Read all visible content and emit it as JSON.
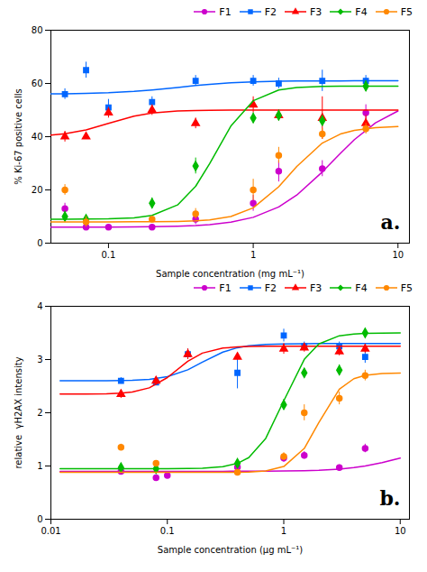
{
  "chart_data": [
    {
      "type": "scatter",
      "annotation": "a.",
      "xlabel": "Sample concentration (mg mL⁻¹)",
      "ylabel": "% Ki-67 positive cells",
      "log": "x",
      "xlim": [
        0.04,
        12
      ],
      "xticks": [
        0.1,
        1,
        10
      ],
      "ylim": [
        0,
        80
      ],
      "yticks": [
        0,
        20,
        40,
        60,
        80
      ],
      "grid": false,
      "legend": "upper right",
      "series": [
        {
          "name": "F1",
          "color": "#CC00CC",
          "marker": "circle",
          "x": [
            0.05,
            0.07,
            0.1,
            0.2,
            0.4,
            1.0,
            1.5,
            3.0,
            6.0
          ],
          "values": [
            13,
            6,
            6,
            6,
            9,
            15,
            27,
            28,
            49
          ],
          "yerr": [
            2,
            1,
            1,
            1,
            2,
            3,
            4,
            3,
            3
          ],
          "fit": {
            "x": [
              0.04,
              0.05,
              0.07,
              0.1,
              0.15,
              0.2,
              0.3,
              0.4,
              0.5,
              0.7,
              1,
              1.5,
              2,
              3,
              4,
              5,
              7,
              10
            ],
            "values": [
              6.006,
              6.01,
              6.02,
              6.04,
              6.09,
              6.159,
              6.357,
              6.632,
              6.98,
              7.885,
              9.698,
              13.603,
              18.062,
              26.753,
              33.752,
              38.886,
              45.2,
              49.653
            ]
          }
        },
        {
          "name": "F2",
          "color": "#0066FF",
          "marker": "square",
          "x": [
            0.05,
            0.07,
            0.1,
            0.2,
            0.4,
            1.0,
            1.5,
            3.0,
            6.0
          ],
          "values": [
            56,
            65,
            51,
            53,
            61,
            61,
            60,
            61,
            61
          ],
          "yerr": [
            2,
            3,
            3,
            2,
            2,
            2,
            2,
            4,
            2
          ],
          "fit": {
            "x": [
              0.04,
              0.05,
              0.07,
              0.1,
              0.15,
              0.2,
              0.3,
              0.4,
              0.5,
              0.7,
              1,
              1.5,
              2,
              3,
              4,
              5,
              7,
              10
            ],
            "values": [
              56.087,
              56.135,
              56.258,
              56.5,
              57,
              57.538,
              58.5,
              59.2,
              59.676,
              60.224,
              60.587,
              60.808,
              60.89,
              60.95,
              60.972,
              60.982,
              60.991,
              60.996
            ]
          }
        },
        {
          "name": "F3",
          "color": "#FF0000",
          "marker": "triangle",
          "x": [
            0.05,
            0.07,
            0.1,
            0.2,
            0.4,
            1.0,
            1.5,
            3.0,
            6.0
          ],
          "values": [
            40,
            40,
            49,
            50,
            45,
            52,
            48,
            47,
            45
          ],
          "yerr": [
            2,
            1,
            2,
            2,
            2,
            3,
            2,
            8,
            3
          ],
          "fit": {
            "x": [
              0.04,
              0.05,
              0.07,
              0.1,
              0.15,
              0.2,
              0.3,
              0.4,
              0.5,
              0.7,
              1,
              1.5,
              2,
              3,
              4,
              5,
              7,
              10
            ],
            "values": [
              40.602,
              41.111,
              42.554,
              45,
              47.714,
              48.889,
              49.643,
              49.846,
              49.921,
              49.971,
              49.99,
              49.997,
              49.999,
              50,
              50,
              50,
              50,
              50
            ]
          }
        },
        {
          "name": "F4",
          "color": "#00BB00",
          "marker": "diamond",
          "x": [
            0.05,
            0.07,
            0.2,
            0.4,
            1.0,
            1.5,
            3.0,
            6.0
          ],
          "values": [
            10,
            9,
            15,
            29,
            47,
            48,
            46,
            59
          ],
          "yerr": [
            2,
            1,
            2,
            3,
            2,
            2,
            2,
            2
          ],
          "fit": {
            "x": [
              0.04,
              0.05,
              0.07,
              0.1,
              0.15,
              0.2,
              0.3,
              0.4,
              0.5,
              0.7,
              1,
              1.5,
              2,
              3,
              4,
              5,
              7,
              10
            ],
            "values": [
              9.005,
              9.011,
              9.037,
              9.128,
              9.524,
              10.409,
              14.351,
              21.351,
              29.869,
              43.966,
              53.508,
              57.551,
              58.461,
              58.868,
              58.952,
              58.978,
              58.993,
              58.998
            ]
          }
        },
        {
          "name": "F5",
          "color": "#FF8800",
          "marker": "circle",
          "x": [
            0.05,
            0.07,
            0.2,
            0.4,
            1.0,
            1.5,
            3.0,
            6.0
          ],
          "values": [
            20,
            8,
            9,
            11,
            20,
            33,
            41,
            43
          ],
          "yerr": [
            2,
            2,
            1,
            2,
            4,
            3,
            2,
            2
          ],
          "fit": {
            "x": [
              0.04,
              0.05,
              0.07,
              0.1,
              0.15,
              0.2,
              0.3,
              0.4,
              0.5,
              0.7,
              1,
              1.5,
              2,
              3,
              4,
              5,
              7,
              10
            ],
            "values": [
              8,
              8.001,
              8.002,
              8.006,
              8.021,
              8.049,
              8.166,
              8.391,
              8.755,
              10,
              13.269,
              21.196,
              28.821,
              37.605,
              40.993,
              42.395,
              43.398,
              43.791
            ]
          }
        }
      ]
    },
    {
      "type": "scatter",
      "annotation": "b.",
      "xlabel": "Sample concentration (μg mL⁻¹)",
      "ylabel": "relative  γH2AX intensity",
      "log": "x",
      "xlim": [
        0.01,
        12
      ],
      "xticks": [
        0.01,
        0.1,
        1,
        10
      ],
      "ylim": [
        0,
        4
      ],
      "yticks": [
        0,
        1,
        2,
        3,
        4
      ],
      "grid": false,
      "legend": "upper right",
      "series": [
        {
          "name": "F1",
          "color": "#CC00CC",
          "marker": "circle",
          "x": [
            0.04,
            0.08,
            0.1,
            0.4,
            1.0,
            1.5,
            3.0,
            5.0
          ],
          "values": [
            0.9,
            0.78,
            0.82,
            0.98,
            1.15,
            1.2,
            0.97,
            1.33
          ],
          "yerr": [
            0.05,
            0.05,
            0.04,
            0.05,
            0.08,
            0.07,
            0.05,
            0.08
          ],
          "fit": {
            "x": [
              0.012,
              0.02,
              0.03,
              0.04,
              0.05,
              0.07,
              0.1,
              0.15,
              0.2,
              0.3,
              0.4,
              0.5,
              0.7,
              1,
              1.5,
              2,
              3,
              4,
              5,
              7,
              10
            ],
            "values": [
              0.9,
              0.9,
              0.9,
              0.9,
              0.9,
              0.9,
              0.9001,
              0.9001,
              0.9002,
              0.9004,
              0.9008,
              0.9012,
              0.9024,
              0.905,
              0.911,
              0.9192,
              0.9413,
              0.969,
              1.0,
              1.0644,
              1.15
            ]
          }
        },
        {
          "name": "F2",
          "color": "#0066FF",
          "marker": "square",
          "x": [
            0.04,
            0.08,
            0.15,
            0.4,
            1.0,
            1.5,
            3.0,
            5.0
          ],
          "values": [
            2.6,
            2.57,
            3.1,
            2.75,
            3.45,
            3.25,
            3.25,
            3.05
          ],
          "yerr": [
            0.06,
            0.06,
            0.1,
            0.3,
            0.12,
            0.08,
            0.08,
            0.12
          ],
          "fit": {
            "x": [
              0.012,
              0.02,
              0.03,
              0.04,
              0.05,
              0.07,
              0.1,
              0.15,
              0.2,
              0.3,
              0.4,
              0.5,
              0.7,
              1,
              1.5,
              2,
              3,
              4,
              5,
              7,
              10
            ],
            "values": [
              2.6002,
              2.6007,
              2.6024,
              2.6056,
              2.6108,
              2.6288,
              2.6778,
              2.8077,
              2.95,
              3.14,
              3.2222,
              3.2579,
              3.2841,
              3.2944,
              3.2983,
              3.2993,
              3.2998,
              3.2999,
              3.3,
              3.3,
              3.3
            ]
          }
        },
        {
          "name": "F3",
          "color": "#FF0000",
          "marker": "triangle",
          "x": [
            0.04,
            0.08,
            0.15,
            0.4,
            1.0,
            1.5,
            3.0,
            5.0
          ],
          "values": [
            2.35,
            2.6,
            3.1,
            3.05,
            3.2,
            3.22,
            3.15,
            3.2
          ],
          "yerr": [
            0.08,
            0.08,
            0.1,
            0.06,
            0.1,
            0.08,
            0.08,
            0.08
          ],
          "fit": {
            "x": [
              0.012,
              0.02,
              0.03,
              0.04,
              0.05,
              0.07,
              0.1,
              0.15,
              0.2,
              0.3,
              0.4,
              0.5,
              0.7,
              1,
              1.5,
              2,
              3,
              4,
              5,
              7,
              10
            ],
            "values": [
              2.3503,
              2.3517,
              2.357,
              2.3688,
              2.3902,
              2.4685,
              2.6611,
              2.9673,
              3.121,
              3.215,
              3.2369,
              3.244,
              3.2481,
              3.2495,
              3.2499,
              3.25,
              3.25,
              3.25,
              3.25,
              3.25,
              3.25
            ]
          }
        },
        {
          "name": "F4",
          "color": "#00BB00",
          "marker": "diamond",
          "x": [
            0.04,
            0.08,
            0.4,
            1.0,
            1.5,
            3.0,
            5.0
          ],
          "values": [
            0.97,
            0.95,
            1.05,
            2.15,
            2.75,
            2.8,
            3.5
          ],
          "yerr": [
            0.04,
            0.04,
            0.05,
            0.1,
            0.08,
            0.1,
            0.08
          ],
          "fit": {
            "x": [
              0.012,
              0.02,
              0.03,
              0.04,
              0.05,
              0.07,
              0.1,
              0.15,
              0.2,
              0.3,
              0.4,
              0.5,
              0.7,
              1,
              1.5,
              2,
              3,
              4,
              5,
              7,
              10
            ],
            "values": [
              0.95,
              0.95,
              0.95,
              0.95,
              0.9501,
              0.9502,
              0.9508,
              0.9533,
              0.9591,
              0.9872,
              1.0492,
              1.1571,
              1.5186,
              2.225,
              3.0033,
              3.2929,
              3.4466,
              3.4802,
              3.4909,
              3.4972,
              3.4992
            ]
          }
        },
        {
          "name": "F5",
          "color": "#FF8800",
          "marker": "circle",
          "x": [
            0.04,
            0.08,
            0.4,
            1.0,
            1.5,
            3.0,
            5.0
          ],
          "values": [
            1.35,
            1.05,
            0.88,
            1.18,
            2.0,
            2.27,
            2.7
          ],
          "yerr": [
            0.06,
            0.05,
            0.04,
            0.07,
            0.15,
            0.12,
            0.1
          ],
          "fit": {
            "x": [
              0.012,
              0.02,
              0.03,
              0.04,
              0.05,
              0.07,
              0.1,
              0.15,
              0.2,
              0.3,
              0.4,
              0.5,
              0.7,
              1,
              1.5,
              2,
              3,
              4,
              5,
              7,
              10
            ],
            "values": [
              0.88,
              0.88,
              0.88,
              0.88,
              0.88,
              0.88,
              0.88,
              0.8801,
              0.8802,
              0.8809,
              0.883,
              0.8873,
              0.9076,
              0.99,
              1.3295,
              1.815,
              2.4416,
              2.64,
              2.7033,
              2.7376,
              2.747
            ]
          }
        }
      ]
    }
  ]
}
